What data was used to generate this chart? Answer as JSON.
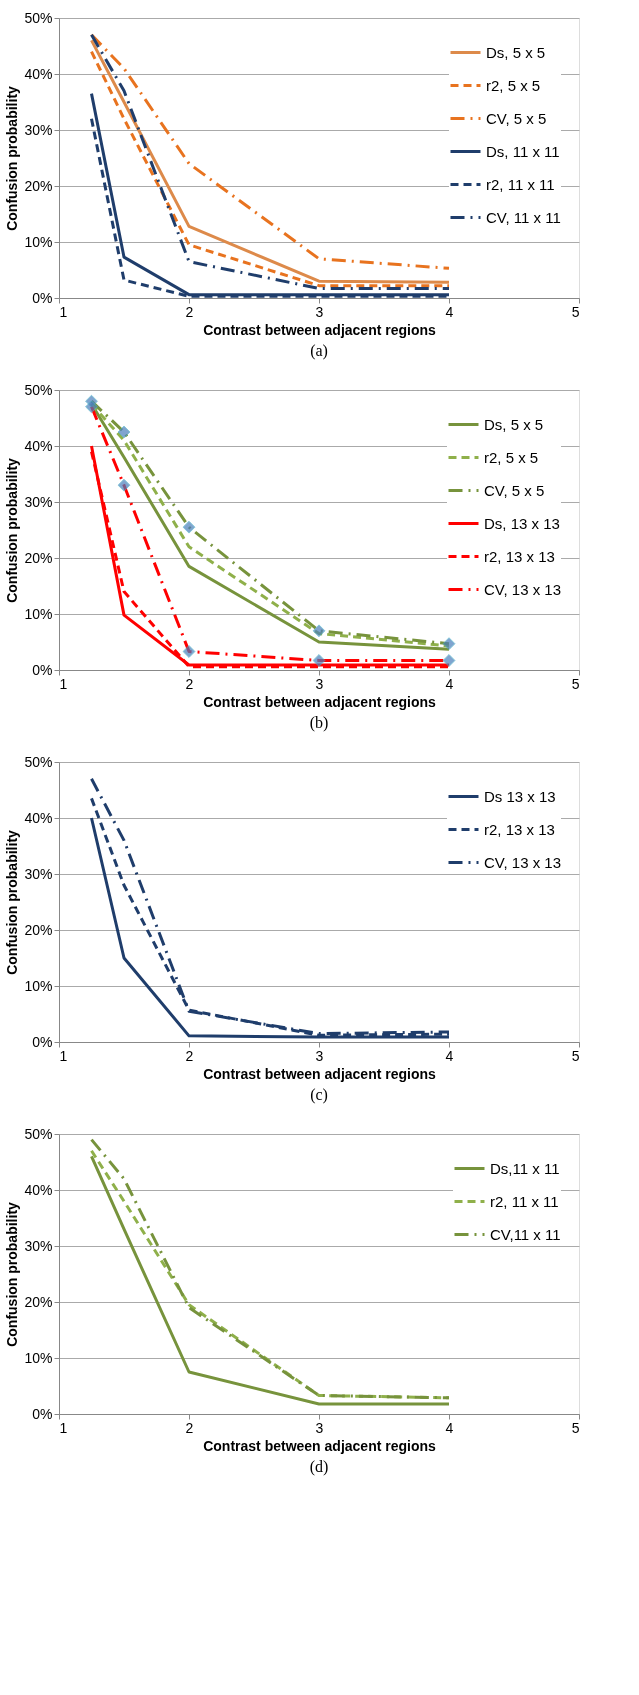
{
  "chart_data": [
    {
      "type": "line",
      "xlabel": "Contrast between adjacent regions",
      "ylabel": "Confusion probability",
      "annotations": [
        "(a)"
      ],
      "x": [
        1.25,
        1.5,
        2,
        3,
        4
      ],
      "xlim": [
        1,
        5
      ],
      "xticks": [
        1,
        2,
        3,
        4,
        5
      ],
      "ylim": [
        0,
        50
      ],
      "yticks": [
        {
          "value": 0,
          "label": "0%"
        },
        {
          "value": 10,
          "label": "10%"
        },
        {
          "value": 20,
          "label": "20%"
        },
        {
          "value": 30,
          "label": "30%"
        },
        {
          "value": 40,
          "label": "40%"
        },
        {
          "value": 50,
          "label": "50%"
        }
      ],
      "grid": "y",
      "legend": "top right",
      "series": [
        {
          "name": "Ds, 5 x 5",
          "color": "#dd8a4a",
          "line_style": "solid",
          "values": [
            46,
            35,
            12.8,
            3,
            2.8
          ]
        },
        {
          "name": "r2, 5 x 5",
          "color": "#e8731f",
          "line_style": "dashed",
          "values": [
            44,
            32,
            9.5,
            2.2,
            2.2
          ]
        },
        {
          "name": "CV, 5 x 5",
          "color": "#e8731f",
          "line_style": "dashdot",
          "values": [
            47,
            41,
            24,
            7,
            5.3
          ]
        },
        {
          "name": "Ds, 11 x 11",
          "color": "#1f3d6b",
          "line_style": "solid",
          "values": [
            36.5,
            7.3,
            0.6,
            0.6,
            0.6
          ]
        },
        {
          "name": "r2, 11 x 11",
          "color": "#1f3d6b",
          "line_style": "dashed",
          "values": [
            32,
            3.2,
            0.3,
            0.3,
            0.3
          ]
        },
        {
          "name": "CV, 11 x 11",
          "color": "#1f3d6b",
          "line_style": "dashdot",
          "values": [
            47,
            37,
            6.5,
            1.7,
            1.7
          ]
        }
      ]
    },
    {
      "type": "line",
      "xlabel": "Contrast between adjacent regions",
      "ylabel": "Confusion probability",
      "annotations": [
        "(b)"
      ],
      "x": [
        1.25,
        1.5,
        2,
        3,
        4
      ],
      "xlim": [
        1,
        5
      ],
      "xticks": [
        1,
        2,
        3,
        4,
        5
      ],
      "ylim": [
        0,
        50
      ],
      "yticks": [
        {
          "value": 0,
          "label": "0%"
        },
        {
          "value": 10,
          "label": "10%"
        },
        {
          "value": 20,
          "label": "20%"
        },
        {
          "value": 30,
          "label": "30%"
        },
        {
          "value": 40,
          "label": "40%"
        },
        {
          "value": 50,
          "label": "50%"
        }
      ],
      "grid": "y",
      "legend": "top right",
      "series": [
        {
          "name": "Ds, 5 x 5",
          "color": "#77933c",
          "line_style": "solid",
          "values": [
            47.5,
            38,
            18.5,
            5,
            3.7
          ]
        },
        {
          "name": "r2, 5 x 5",
          "color": "#8fb04a",
          "line_style": "dashed",
          "values": [
            47.5,
            41,
            22,
            6.5,
            4.3
          ]
        },
        {
          "name": "CV, 5 x 5",
          "color": "#77933c",
          "line_style": "dashdot",
          "marker": "diamond",
          "values": [
            48,
            42.5,
            25.5,
            7,
            4.7
          ]
        },
        {
          "name": "Ds, 13 x 13",
          "color": "#ff0000",
          "line_style": "solid",
          "values": [
            40,
            9.8,
            0.9,
            0.9,
            0.9
          ]
        },
        {
          "name": "r2, 13 x 13",
          "color": "#ff0000",
          "line_style": "dashed",
          "values": [
            39,
            14,
            0.6,
            0.6,
            0.6
          ]
        },
        {
          "name": "CV, 13 x 13",
          "color": "#ff0000",
          "line_style": "dashdot",
          "marker": "diamond",
          "values": [
            47,
            33,
            3.3,
            1.7,
            1.7
          ]
        }
      ]
    },
    {
      "type": "line",
      "xlabel": "Contrast between adjacent regions",
      "ylabel": "Confusion probability",
      "annotations": [
        "(c)"
      ],
      "x": [
        1.25,
        1.5,
        2,
        3,
        4
      ],
      "xlim": [
        1,
        5
      ],
      "xticks": [
        1,
        2,
        3,
        4,
        5
      ],
      "ylim": [
        0,
        50
      ],
      "yticks": [
        {
          "value": 0,
          "label": "0%"
        },
        {
          "value": 10,
          "label": "10%"
        },
        {
          "value": 20,
          "label": "20%"
        },
        {
          "value": 30,
          "label": "30%"
        },
        {
          "value": 40,
          "label": "40%"
        },
        {
          "value": 50,
          "label": "50%"
        }
      ],
      "grid": "y",
      "legend": "top right",
      "series": [
        {
          "name": "Ds 13 x 13",
          "color": "#1f3d6b",
          "line_style": "solid",
          "values": [
            40,
            15,
            1.1,
            0.9,
            0.9
          ]
        },
        {
          "name": "r2, 13 x 13",
          "color": "#1f3d6b",
          "line_style": "dashed",
          "values": [
            43.5,
            28,
            5.7,
            1.2,
            1.4
          ]
        },
        {
          "name": "CV, 13 x 13",
          "color": "#1f3d6b",
          "line_style": "dashdot",
          "values": [
            47,
            36,
            5.5,
            1.5,
            1.8
          ]
        }
      ]
    },
    {
      "type": "line",
      "xlabel": "Contrast between adjacent regions",
      "ylabel": "Confusion probability",
      "annotations": [
        "(d)"
      ],
      "x": [
        1.25,
        1.5,
        2,
        3,
        4
      ],
      "xlim": [
        1,
        5
      ],
      "xticks": [
        1,
        2,
        3,
        4,
        5
      ],
      "ylim": [
        0,
        50
      ],
      "yticks": [
        {
          "value": 0,
          "label": "0%"
        },
        {
          "value": 10,
          "label": "10%"
        },
        {
          "value": 20,
          "label": "20%"
        },
        {
          "value": 30,
          "label": "30%"
        },
        {
          "value": 40,
          "label": "40%"
        },
        {
          "value": 50,
          "label": "50%"
        }
      ],
      "grid": "y",
      "legend": "top right",
      "series": [
        {
          "name": "Ds,11 x 11",
          "color": "#77933c",
          "line_style": "solid",
          "values": [
            46,
            33,
            7.5,
            1.8,
            1.8
          ]
        },
        {
          "name": "r2, 11 x 11",
          "color": "#8fb04a",
          "line_style": "dashed",
          "values": [
            47,
            38,
            19.5,
            3.3,
            2.9
          ]
        },
        {
          "name": "CV,11 x 11",
          "color": "#77933c",
          "line_style": "dashdot",
          "values": [
            49,
            42,
            19,
            3.3,
            2.9
          ]
        }
      ]
    }
  ]
}
